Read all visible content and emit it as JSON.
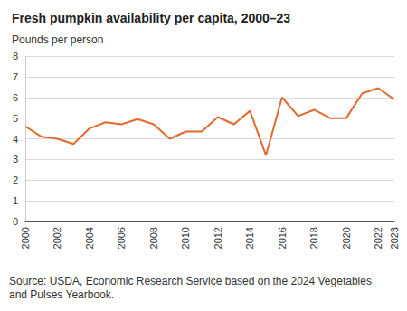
{
  "chart_data": {
    "type": "line",
    "title": "Fresh pumpkin availability per capita, 2000–23",
    "ylabel": "Pounds per person",
    "source": "Source: USDA, Economic Research Service based on the 2024 Vegetables and Pulses Yearbook.",
    "categories": [
      "2000",
      null,
      "2002",
      null,
      "2004",
      null,
      "2006",
      null,
      "2008",
      null,
      "2010",
      null,
      "2012",
      null,
      "2014",
      null,
      "2016",
      null,
      "2018",
      null,
      "2020",
      null,
      "2022",
      "2023"
    ],
    "values": [
      4.6,
      4.1,
      4.0,
      3.75,
      4.5,
      4.8,
      4.7,
      4.95,
      4.7,
      4.0,
      4.35,
      4.35,
      5.05,
      4.7,
      5.35,
      3.2,
      6.0,
      5.1,
      5.4,
      5.0,
      5.0,
      6.2,
      6.45,
      5.9
    ],
    "color": "#e26a2c",
    "ylim": [
      0,
      8
    ],
    "yticks": [
      0,
      1,
      2,
      3,
      4,
      5,
      6,
      7,
      8
    ],
    "grid": true
  }
}
